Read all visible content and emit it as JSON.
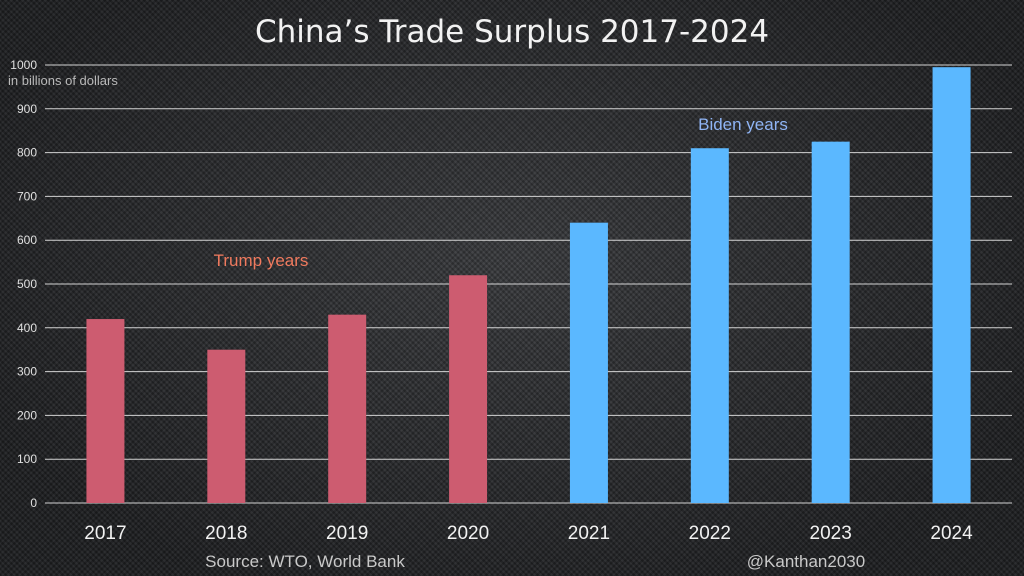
{
  "chart_data": {
    "type": "bar",
    "title": "China’s Trade Surplus 2017-2024",
    "unit_label": "in billions of dollars",
    "categories": [
      "2017",
      "2018",
      "2019",
      "2020",
      "2021",
      "2022",
      "2023",
      "2024"
    ],
    "values": [
      420,
      350,
      430,
      520,
      640,
      810,
      825,
      995
    ],
    "ylim": [
      0,
      1000
    ],
    "yticks": [
      0,
      100,
      200,
      300,
      400,
      500,
      600,
      700,
      800,
      900,
      1000
    ],
    "grid": true,
    "bar_colors": [
      "#cd5c70",
      "#cd5c70",
      "#cd5c70",
      "#cd5c70",
      "#5bb8ff",
      "#5bb8ff",
      "#5bb8ff",
      "#5bb8ff"
    ],
    "annotations": [
      {
        "text": "Trump years",
        "color": "#f07a5e"
      },
      {
        "text": "Biden years",
        "color": "#8fb4f5"
      }
    ]
  },
  "footer": {
    "source": "Source: WTO, World Bank",
    "handle": "@Kanthan2030"
  }
}
